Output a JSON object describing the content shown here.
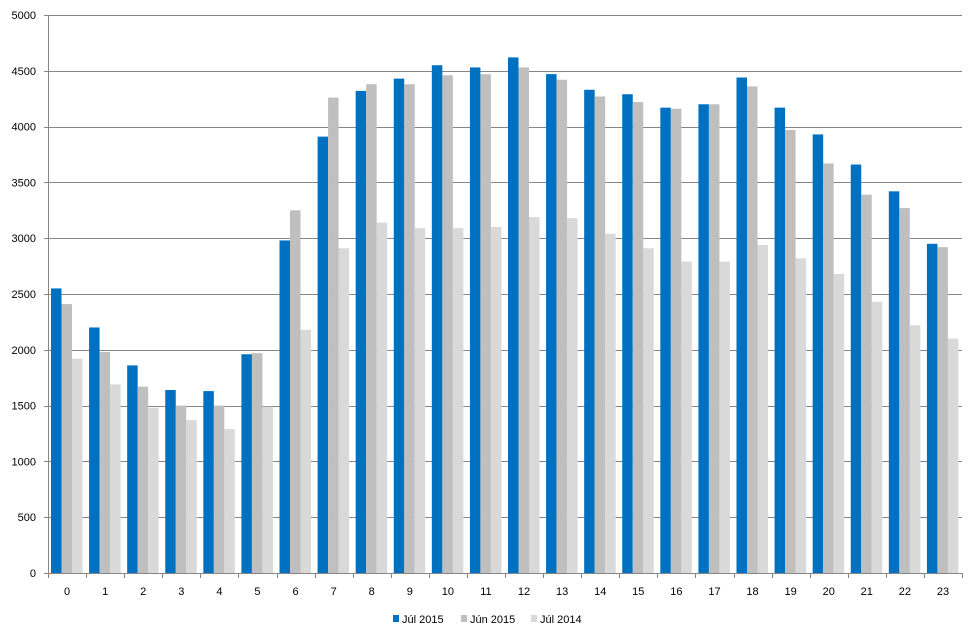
{
  "chart_data": {
    "type": "bar",
    "title": "",
    "xlabel": "",
    "ylabel": "",
    "categories": [
      "0",
      "1",
      "2",
      "3",
      "4",
      "5",
      "6",
      "7",
      "8",
      "9",
      "10",
      "11",
      "12",
      "13",
      "14",
      "15",
      "16",
      "17",
      "18",
      "19",
      "20",
      "21",
      "22",
      "23"
    ],
    "y_ticks": [
      "0",
      "500",
      "1000",
      "1500",
      "2000",
      "2500",
      "3000",
      "3500",
      "4000",
      "4500",
      "5000"
    ],
    "ylim": [
      0,
      5000
    ],
    "grid": true,
    "legend_position": "bottom",
    "series": [
      {
        "name": "Júl 2015",
        "color": "#0070C0",
        "values": [
          2550,
          2200,
          1860,
          1640,
          1630,
          1960,
          2980,
          3910,
          4320,
          4430,
          4550,
          4530,
          4620,
          4470,
          4330,
          4290,
          4170,
          4200,
          4440,
          4170,
          3930,
          3660,
          3420,
          2950
        ]
      },
      {
        "name": "Jún 2015",
        "color": "#BFBFBF",
        "values": [
          2410,
          1980,
          1670,
          1500,
          1500,
          1970,
          3250,
          4260,
          4380,
          4380,
          4460,
          4470,
          4530,
          4420,
          4270,
          4220,
          4160,
          4200,
          4360,
          3970,
          3670,
          3390,
          3270,
          2920
        ]
      },
      {
        "name": "Júl 2014",
        "color": "#D9D9D9",
        "values": [
          1920,
          1690,
          1480,
          1370,
          1290,
          1490,
          2180,
          2910,
          3140,
          3090,
          3090,
          3100,
          3190,
          3180,
          3040,
          2910,
          2790,
          2790,
          2940,
          2820,
          2680,
          2430,
          2220,
          2100
        ]
      }
    ]
  }
}
